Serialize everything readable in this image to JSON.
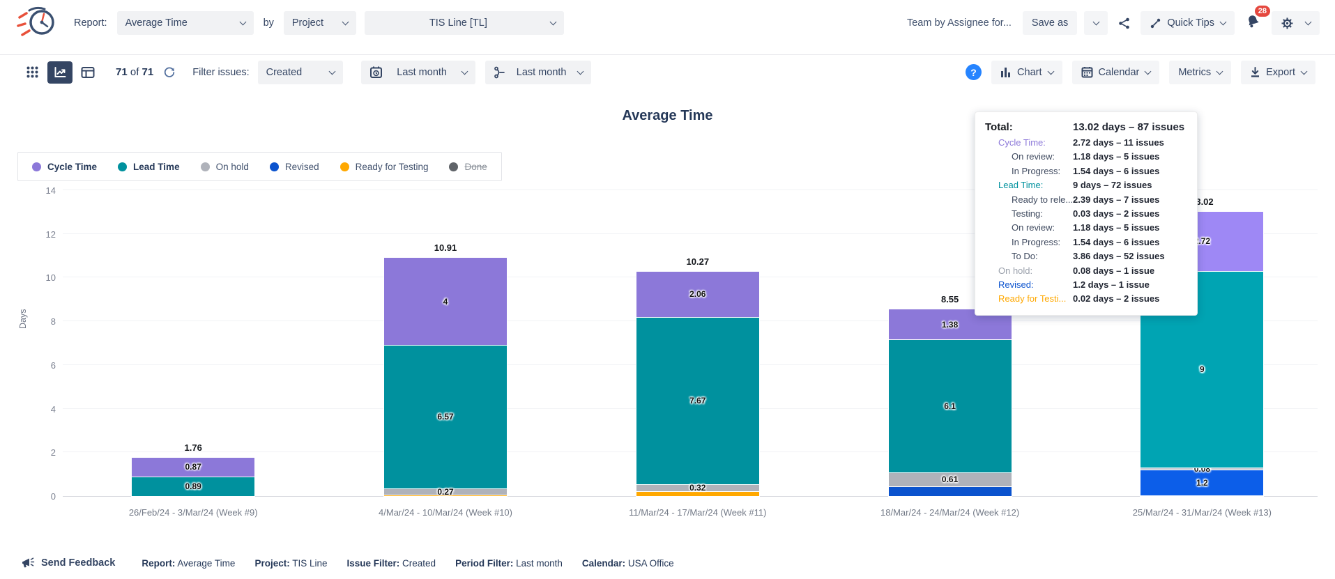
{
  "header": {
    "report_label": "Report:",
    "report_value": "Average Time",
    "by_label": "by",
    "group_value": "Project",
    "project_value": "TIS Line [TL]",
    "saved_report_name": "Team by Assignee for...",
    "save_as_label": "Save as",
    "quick_tips_label": "Quick Tips",
    "notification_count": "28"
  },
  "toolbar": {
    "count_current": "71",
    "count_of_label": "of",
    "count_total": "71",
    "filter_issues_label": "Filter issues:",
    "issue_filter_value": "Created",
    "period_filter_value": "Last month",
    "sprint_filter_value": "Last month",
    "help_glyph": "?",
    "chart_label": "Chart",
    "calendar_label": "Calendar",
    "metrics_label": "Metrics",
    "export_label": "Export"
  },
  "chart": {
    "title": "Average Time",
    "ylabel": "Days",
    "legend": {
      "items": [
        {
          "label": "Cycle Time",
          "color": "#8c78d9",
          "bold": true,
          "struck": false
        },
        {
          "label": "Lead Time",
          "color": "#00919e",
          "bold": true,
          "struck": false
        },
        {
          "label": "On hold",
          "color": "#afb2ba",
          "bold": false,
          "struck": false
        },
        {
          "label": "Revised",
          "color": "#0b53ce",
          "bold": false,
          "struck": false
        },
        {
          "label": "Ready for Testing",
          "color": "#ffa800",
          "bold": false,
          "struck": false
        },
        {
          "label": "Done",
          "color": "#5f6368",
          "bold": false,
          "struck": true
        }
      ]
    }
  },
  "chart_data": {
    "type": "bar",
    "stacked": true,
    "title": "Average Time",
    "xlabel": "",
    "ylabel": "Days",
    "ylim": [
      0,
      14
    ],
    "yticks": [
      0,
      2,
      4,
      6,
      8,
      10,
      12,
      14
    ],
    "grid": true,
    "legend_position": "top-left",
    "categories": [
      "26/Feb/24 - 3/Mar/24 (Week #9)",
      "4/Mar/24 - 10/Mar/24 (Week #10)",
      "11/Mar/24 - 17/Mar/24 (Week #11)",
      "18/Mar/24 - 24/Mar/24 (Week #12)",
      "25/Mar/24 - 31/Mar/24 (Week #13)"
    ],
    "stack_order": [
      "Ready for Testing",
      "Revised",
      "On hold",
      "Lead Time",
      "Cycle Time"
    ],
    "highlight_index": 4,
    "series": [
      {
        "name": "Cycle Time",
        "color": "#8c78d9",
        "values": [
          0.87,
          4,
          2.06,
          1.38,
          2.72
        ],
        "labels": [
          "0.87",
          "4",
          "2.06",
          "1.38",
          "2.72"
        ]
      },
      {
        "name": "Lead Time",
        "color": "#00919e",
        "values": [
          0.89,
          6.57,
          7.67,
          6.1,
          9
        ],
        "labels": [
          "0.89",
          "6.57",
          "7.67",
          "6.1",
          "9"
        ]
      },
      {
        "name": "On hold",
        "color": "#afb2ba",
        "values": [
          0,
          0.27,
          0.32,
          0.61,
          0.08
        ],
        "labels": [
          null,
          "0.27",
          "0.32",
          "0.61",
          "0.08"
        ]
      },
      {
        "name": "Revised",
        "color": "#0b53ce",
        "values": [
          0,
          0,
          0,
          0.46,
          1.2
        ],
        "labels": [
          null,
          null,
          null,
          null,
          "1.2"
        ]
      },
      {
        "name": "Ready for Testing",
        "color": "#ffa800",
        "values": [
          0,
          0.07,
          0.22,
          0,
          0.02
        ],
        "labels": [
          null,
          null,
          null,
          null,
          null
        ]
      }
    ],
    "totals": [
      "1.76",
      "10.91",
      "10.27",
      "8.55",
      "13.02"
    ]
  },
  "tooltip": {
    "rows": [
      {
        "label": "Total:",
        "value": "13.02 days – 87 issues",
        "level": 0,
        "total": true,
        "color": ""
      },
      {
        "label": "Cycle Time:",
        "value": "2.72 days – 11 issues",
        "level": 1,
        "total": false,
        "color": "#8c78d9"
      },
      {
        "label": "On review:",
        "value": "1.18 days – 5 issues",
        "level": 2,
        "total": false,
        "color": ""
      },
      {
        "label": "In Progress:",
        "value": "1.54 days – 6 issues",
        "level": 2,
        "total": false,
        "color": ""
      },
      {
        "label": "Lead Time:",
        "value": "9 days – 72 issues",
        "level": 1,
        "total": false,
        "color": "#00919e"
      },
      {
        "label": "Ready to rele...",
        "value": "2.39 days – 7 issues",
        "level": 2,
        "total": false,
        "color": ""
      },
      {
        "label": "Testing:",
        "value": "0.03 days – 2 issues",
        "level": 2,
        "total": false,
        "color": ""
      },
      {
        "label": "On review:",
        "value": "1.18 days – 5 issues",
        "level": 2,
        "total": false,
        "color": ""
      },
      {
        "label": "In Progress:",
        "value": "1.54 days – 6 issues",
        "level": 2,
        "total": false,
        "color": ""
      },
      {
        "label": "To Do:",
        "value": "3.86 days – 52 issues",
        "level": 2,
        "total": false,
        "color": ""
      },
      {
        "label": "On hold:",
        "value": "0.08 days – 1 issue",
        "level": 1,
        "total": false,
        "color": "#9aa0ab"
      },
      {
        "label": "Revised:",
        "value": "1.2 days – 1 issue",
        "level": 1,
        "total": false,
        "color": "#0b53ce"
      },
      {
        "label": "Ready for Testi...",
        "value": "0.02 days – 2 issues",
        "level": 1,
        "total": false,
        "color": "#ffa800"
      }
    ]
  },
  "footer": {
    "send_feedback_label": "Send Feedback",
    "summary": [
      {
        "label": "Report:",
        "value": "Average Time"
      },
      {
        "label": "Project:",
        "value": "TIS Line"
      },
      {
        "label": "Issue Filter:",
        "value": "Created"
      },
      {
        "label": "Period Filter:",
        "value": "Last month"
      },
      {
        "label": "Calendar:",
        "value": "USA Office"
      }
    ]
  }
}
